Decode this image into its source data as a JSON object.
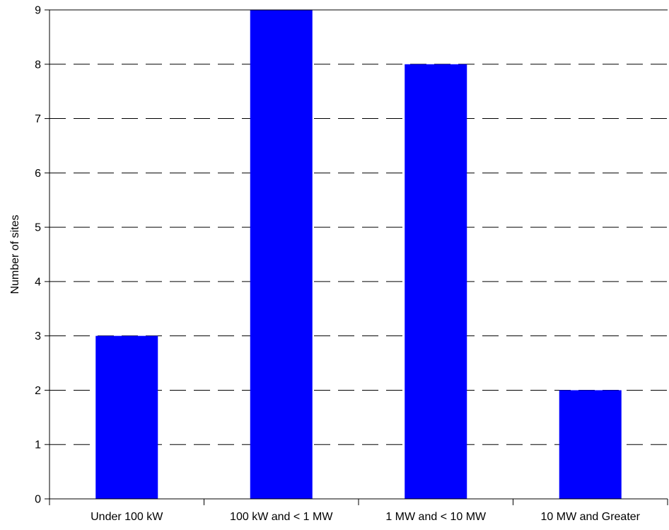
{
  "chart_data": {
    "type": "bar",
    "title": "",
    "xlabel": "",
    "ylabel": "Number of sites",
    "categories": [
      "Under 100 kW",
      "100 kW and < 1 MW",
      "1 MW and < 10 MW",
      "10 MW and Greater"
    ],
    "values": [
      3,
      9,
      8,
      2
    ],
    "ylim": [
      0,
      9
    ],
    "yticks": [
      "0",
      "1",
      "2",
      "3",
      "4",
      "5",
      "6",
      "7",
      "8",
      "9"
    ],
    "grid": "horizontal dashed",
    "bar_color": "#0000ff",
    "grid_color": "#000000",
    "legend": "none"
  }
}
